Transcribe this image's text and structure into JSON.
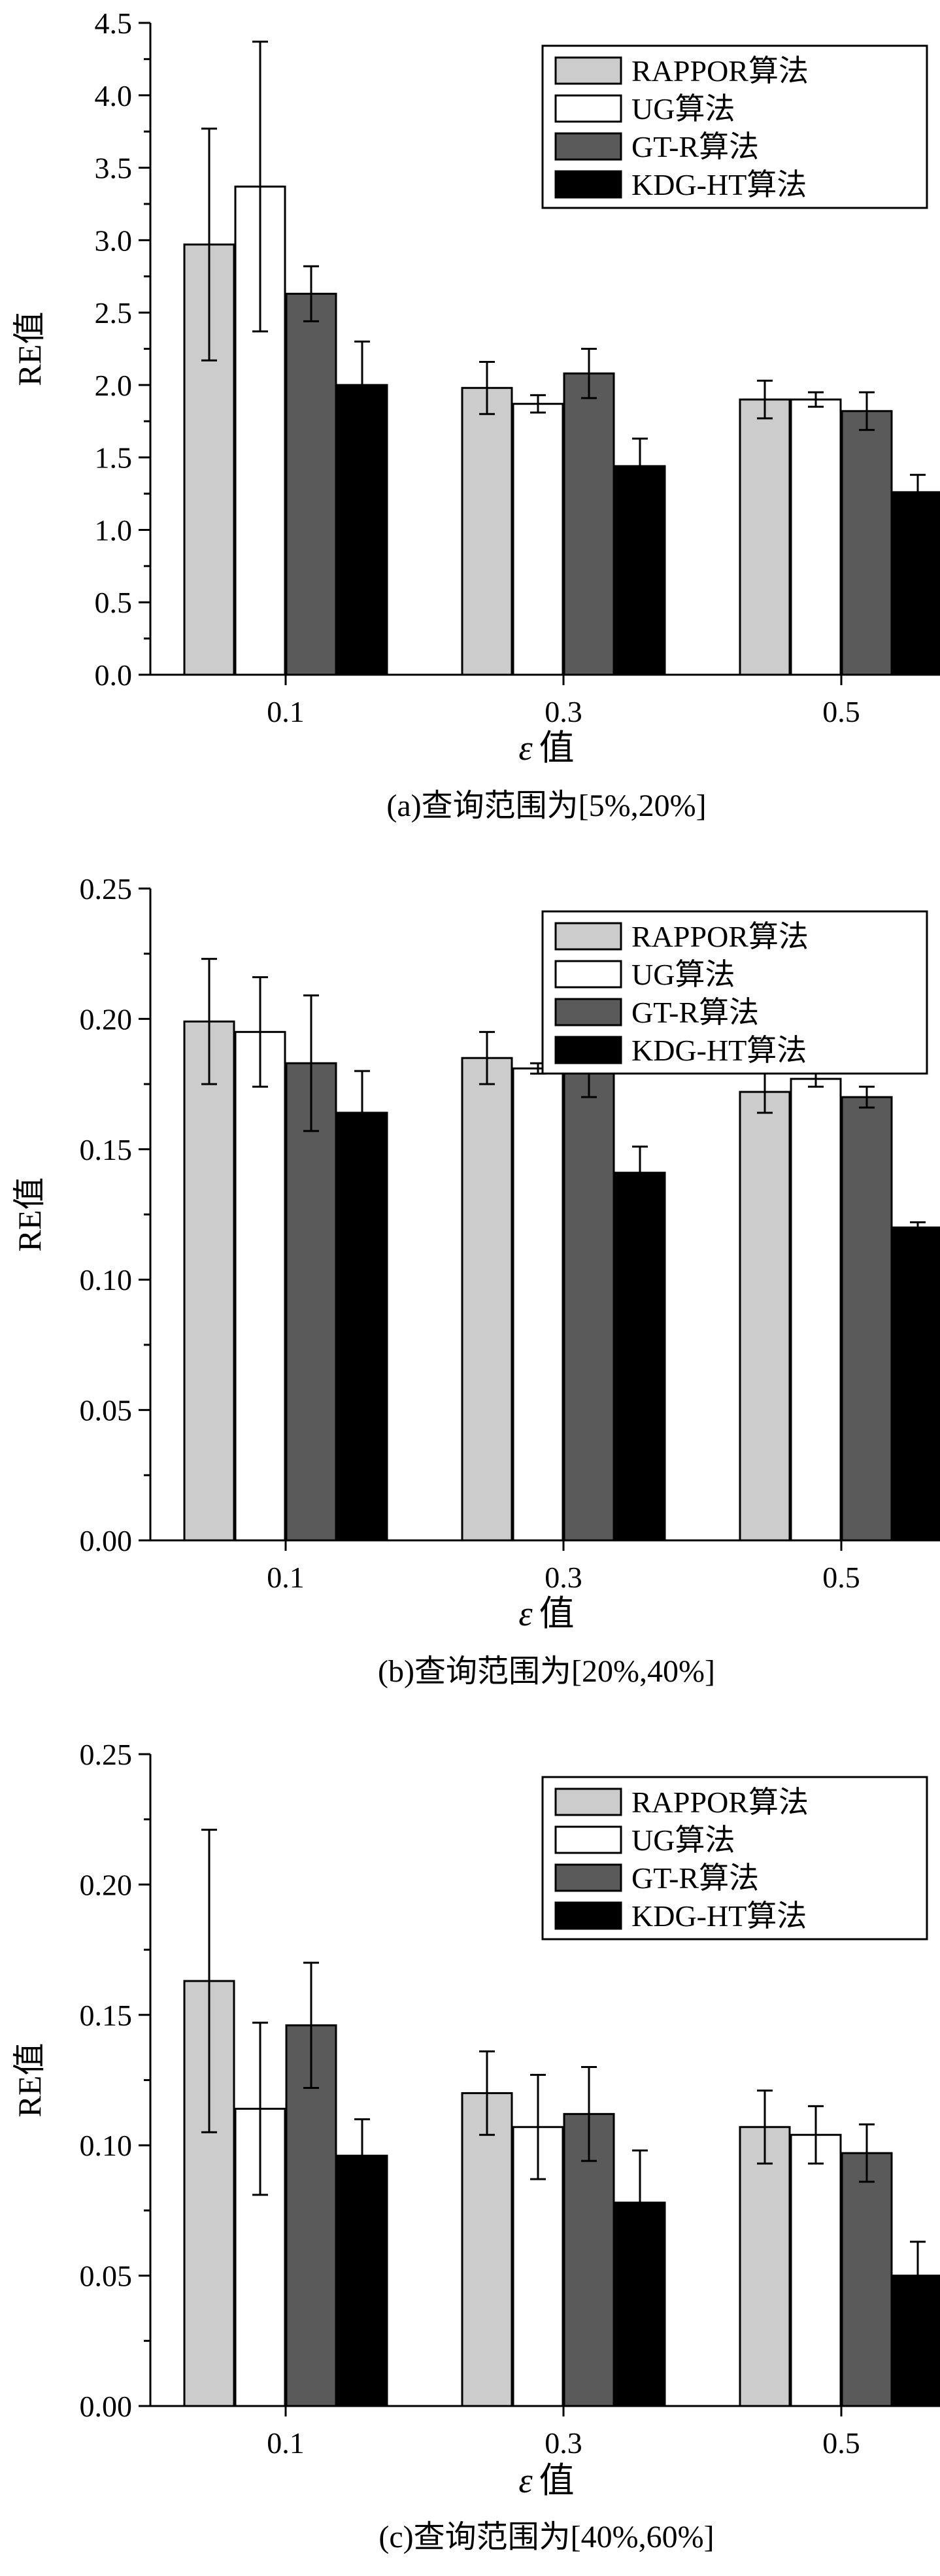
{
  "chart_data": [
    {
      "type": "bar",
      "title": "(a)查询范围为[5%,20%]",
      "xlabel_symbol": "ε",
      "xlabel_text": "值",
      "ylabel": "RE值",
      "categories": [
        "0.1",
        "0.3",
        "0.5"
      ],
      "ylim": [
        0,
        4.5
      ],
      "yticks": [
        "0.0",
        "0.5",
        "1.0",
        "1.5",
        "2.0",
        "2.5",
        "3.0",
        "3.5",
        "4.0",
        "4.5"
      ],
      "legend_position": "top-right",
      "series": [
        {
          "name": "RAPPOR算法",
          "color": "#cccccc",
          "values": [
            2.97,
            1.98,
            1.9
          ],
          "errors": [
            0.8,
            0.18,
            0.13
          ]
        },
        {
          "name": "UG算法",
          "color": "#ffffff",
          "values": [
            3.37,
            1.87,
            1.9
          ],
          "errors": [
            1.0,
            0.06,
            0.05
          ]
        },
        {
          "name": "GT-R算法",
          "color": "#5a5a5a",
          "values": [
            2.63,
            2.08,
            1.82
          ],
          "errors": [
            0.19,
            0.17,
            0.13
          ]
        },
        {
          "name": "KDG-HT算法",
          "color": "#000000",
          "values": [
            2.0,
            1.44,
            1.26
          ],
          "errors": [
            0.3,
            0.19,
            0.12
          ]
        }
      ]
    },
    {
      "type": "bar",
      "title": "(b)查询范围为[20%,40%]",
      "xlabel_symbol": "ε",
      "xlabel_text": "值",
      "ylabel": "RE值",
      "categories": [
        "0.1",
        "0.3",
        "0.5"
      ],
      "ylim": [
        0,
        0.25
      ],
      "yticks": [
        "0.00",
        "0.05",
        "0.10",
        "0.15",
        "0.20",
        "0.25"
      ],
      "legend_position": "top-right",
      "series": [
        {
          "name": "RAPPOR算法",
          "color": "#cccccc",
          "values": [
            0.199,
            0.185,
            0.172
          ],
          "errors": [
            0.024,
            0.01,
            0.008
          ]
        },
        {
          "name": "UG算法",
          "color": "#ffffff",
          "values": [
            0.195,
            0.181,
            0.177
          ],
          "errors": [
            0.021,
            0.002,
            0.003
          ]
        },
        {
          "name": "GT-R算法",
          "color": "#5a5a5a",
          "values": [
            0.183,
            0.181,
            0.17
          ],
          "errors": [
            0.026,
            0.011,
            0.004
          ]
        },
        {
          "name": "KDG-HT算法",
          "color": "#000000",
          "values": [
            0.164,
            0.141,
            0.12
          ],
          "errors": [
            0.016,
            0.01,
            0.002
          ]
        }
      ]
    },
    {
      "type": "bar",
      "title": "(c)查询范围为[40%,60%]",
      "xlabel_symbol": "ε",
      "xlabel_text": "值",
      "ylabel": "RE值",
      "categories": [
        "0.1",
        "0.3",
        "0.5"
      ],
      "ylim": [
        0,
        0.25
      ],
      "yticks": [
        "0.00",
        "0.05",
        "0.10",
        "0.15",
        "0.20",
        "0.25"
      ],
      "legend_position": "top-right",
      "series": [
        {
          "name": "RAPPOR算法",
          "color": "#cccccc",
          "values": [
            0.163,
            0.12,
            0.107
          ],
          "errors": [
            0.058,
            0.016,
            0.014
          ]
        },
        {
          "name": "UG算法",
          "color": "#ffffff",
          "values": [
            0.114,
            0.107,
            0.104
          ],
          "errors": [
            0.033,
            0.02,
            0.011
          ]
        },
        {
          "name": "GT-R算法",
          "color": "#5a5a5a",
          "values": [
            0.146,
            0.112,
            0.097
          ],
          "errors": [
            0.024,
            0.018,
            0.011
          ]
        },
        {
          "name": "KDG-HT算法",
          "color": "#000000",
          "values": [
            0.096,
            0.078,
            0.05
          ],
          "errors": [
            0.014,
            0.02,
            0.013
          ]
        }
      ]
    }
  ]
}
